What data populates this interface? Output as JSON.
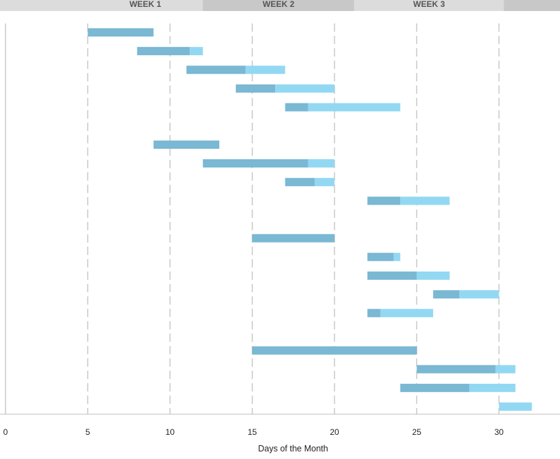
{
  "chart_data": {
    "type": "bar",
    "orientation": "horizontal",
    "stacked": true,
    "xlabel": "Days of the Month",
    "xlim": [
      0,
      33
    ],
    "xticks": [
      0,
      5,
      10,
      15,
      20,
      25,
      30
    ],
    "grid": "vertical",
    "legend": "none",
    "weeks": [
      {
        "label": "WEEK 1",
        "start": 5,
        "end": 12
      },
      {
        "label": "WEEK 2",
        "start": 12,
        "end": 21.2
      },
      {
        "label": "WEEK 3",
        "start": 21.2,
        "end": 30.3
      }
    ],
    "colors": {
      "completed": "#7ab8d3",
      "remaining": "#93d8f2",
      "week_band_a": "#dcdcdc",
      "week_band_b": "#c8c8c8",
      "gridline": "#c8c8c8",
      "axis": "#bfbfbf"
    },
    "tasks": [
      {
        "start": 5,
        "completed": 4,
        "remaining": 0
      },
      {
        "start": 8,
        "completed": 3.2,
        "remaining": 0.8
      },
      {
        "start": 11,
        "completed": 3.6,
        "remaining": 2.4
      },
      {
        "start": 14,
        "completed": 2.4,
        "remaining": 3.6
      },
      {
        "start": 17,
        "completed": 1.4,
        "remaining": 5.6
      },
      null,
      {
        "start": 9,
        "completed": 4,
        "remaining": 0
      },
      {
        "start": 12,
        "completed": 6.4,
        "remaining": 1.6
      },
      {
        "start": 17,
        "completed": 1.8,
        "remaining": 1.2
      },
      {
        "start": 22,
        "completed": 2,
        "remaining": 3
      },
      null,
      {
        "start": 15,
        "completed": 5,
        "remaining": 0
      },
      {
        "start": 22,
        "completed": 1.6,
        "remaining": 0.4
      },
      {
        "start": 22,
        "completed": 3,
        "remaining": 2
      },
      {
        "start": 26,
        "completed": 1.6,
        "remaining": 2.4
      },
      {
        "start": 22,
        "completed": 0.8,
        "remaining": 3.2
      },
      null,
      {
        "start": 15,
        "completed": 10,
        "remaining": 0
      },
      {
        "start": 25,
        "completed": 4.8,
        "remaining": 1.2
      },
      {
        "start": 24,
        "completed": 4.2,
        "remaining": 2.8
      },
      {
        "start": 30,
        "completed": 0,
        "remaining": 2
      }
    ]
  }
}
